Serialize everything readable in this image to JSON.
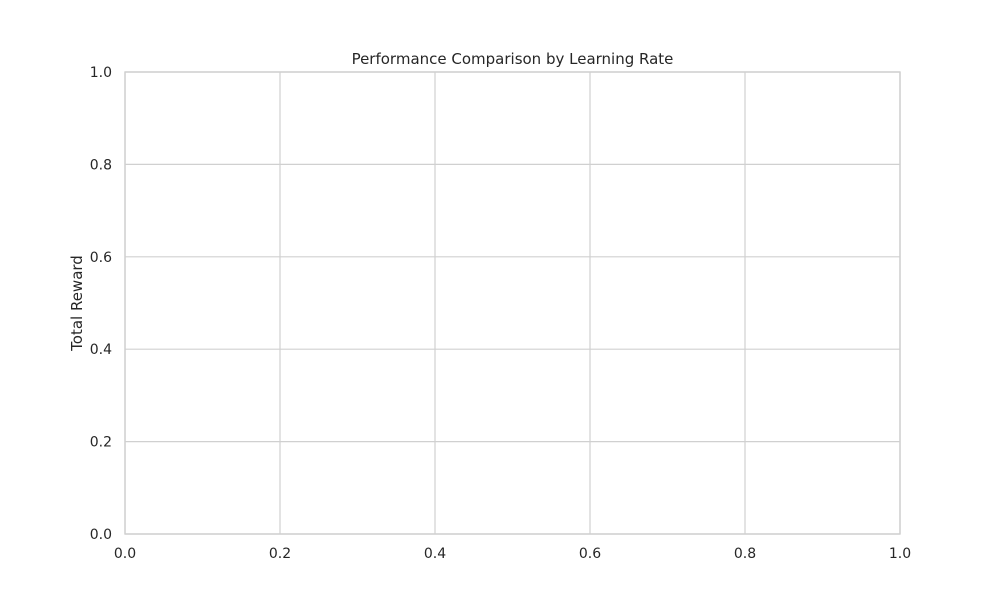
{
  "chart_data": {
    "type": "line",
    "title": "Performance Comparison by Learning Rate",
    "xlabel": "",
    "ylabel": "Total Reward",
    "xlim": [
      0.0,
      1.0
    ],
    "ylim": [
      0.0,
      1.0
    ],
    "x_ticks": [
      0.0,
      0.2,
      0.4,
      0.6,
      0.8,
      1.0
    ],
    "y_ticks": [
      0.0,
      0.2,
      0.4,
      0.6,
      0.8,
      1.0
    ],
    "x_tick_labels": [
      "0.0",
      "0.2",
      "0.4",
      "0.6",
      "0.8",
      "1.0"
    ],
    "y_tick_labels": [
      "0.0",
      "0.2",
      "0.4",
      "0.6",
      "0.8",
      "1.0"
    ],
    "grid": true,
    "series": []
  },
  "colors": {
    "background": "#ffffff",
    "grid": "#d0d0d0",
    "frame": "#cfcfcf",
    "text": "#262626"
  }
}
